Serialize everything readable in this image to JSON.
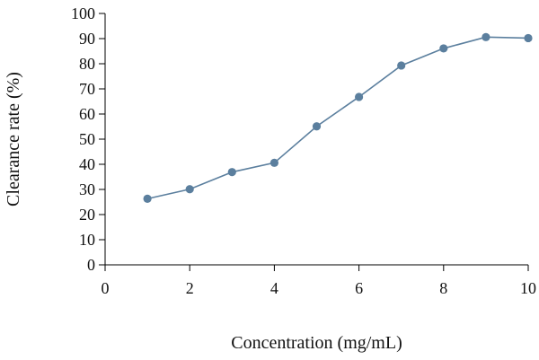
{
  "chart_data": {
    "type": "line",
    "title": "",
    "xlabel": "Concentration (mg/mL)",
    "ylabel": "Clearance rate (%)",
    "xlim": [
      0,
      10
    ],
    "ylim": [
      0,
      100
    ],
    "x_ticks": [
      0,
      2,
      4,
      6,
      8,
      10
    ],
    "x_tick_labels": [
      "0",
      "2",
      "4",
      "6",
      "8",
      "10"
    ],
    "y_ticks": [
      0,
      10,
      20,
      30,
      40,
      50,
      60,
      70,
      80,
      90,
      100
    ],
    "y_tick_labels": [
      "0",
      "10",
      "20",
      "30",
      "40",
      "50",
      "60",
      "70",
      "80",
      "90",
      "100"
    ],
    "grid": false,
    "legend": "none",
    "series": [
      {
        "color": "#5b7f9e",
        "points": [
          {
            "x": 1,
            "y": 26.3
          },
          {
            "x": 2,
            "y": 30.1
          },
          {
            "x": 3,
            "y": 36.9
          },
          {
            "x": 4,
            "y": 40.6
          },
          {
            "x": 5,
            "y": 55.1
          },
          {
            "x": 6,
            "y": 66.8
          },
          {
            "x": 7,
            "y": 79.3
          },
          {
            "x": 8,
            "y": 86.1
          },
          {
            "x": 9,
            "y": 90.6
          },
          {
            "x": 10,
            "y": 90.2
          }
        ]
      }
    ]
  }
}
